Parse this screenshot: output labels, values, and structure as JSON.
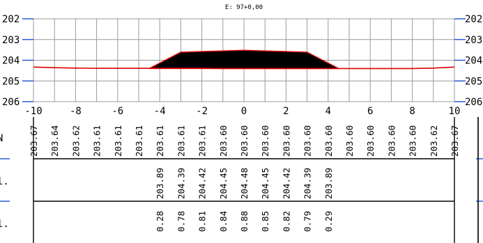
{
  "title": "E: 97+0,00",
  "y_axis_labels": [
    "206",
    "205",
    "204",
    "203",
    "202"
  ],
  "x_axis_labels": [
    "-10",
    "-8",
    "-6",
    "-4",
    "-2",
    "0",
    "2",
    "4",
    "6",
    "8",
    "10"
  ],
  "row_labels": [
    "N",
    "l.",
    "l."
  ],
  "chart_data": {
    "type": "line",
    "title": "E: 97+0,00",
    "xlim": [
      -10,
      10
    ],
    "ylim": [
      202,
      206
    ],
    "grid": true,
    "x_ticks": [
      -10,
      -8,
      -6,
      -4,
      -2,
      0,
      2,
      4,
      6,
      8,
      10
    ],
    "y_ticks": [
      202,
      203,
      204,
      205,
      206
    ],
    "series": [
      {
        "id": "terrain",
        "color": "#e00000",
        "x": [
          -10,
          -9,
          -8,
          -7,
          -6,
          -5,
          -4,
          -3,
          -2,
          -1,
          0,
          1,
          2,
          3,
          4,
          5,
          6,
          7,
          8,
          9,
          10
        ],
        "y": [
          203.67,
          203.64,
          203.62,
          203.61,
          203.61,
          203.61,
          203.61,
          203.61,
          203.61,
          203.6,
          203.6,
          203.6,
          203.6,
          203.6,
          203.6,
          203.6,
          203.6,
          203.6,
          203.6,
          203.62,
          203.67
        ]
      },
      {
        "id": "fill",
        "color": "#000000",
        "x": [
          -4.5,
          -3,
          -2,
          -1,
          0,
          1,
          2,
          3,
          4.5
        ],
        "y": [
          203.6,
          204.39,
          204.42,
          204.45,
          204.48,
          204.45,
          204.42,
          204.39,
          203.6
        ]
      }
    ],
    "table": {
      "x": [
        -10,
        -9,
        -8,
        -7,
        -6,
        -5,
        -4,
        -3,
        -2,
        -1,
        0,
        1,
        2,
        3,
        4,
        5,
        6,
        7,
        8,
        9,
        10
      ],
      "row1": [
        "203.67",
        "203.64",
        "203.62",
        "203.61",
        "203.61",
        "203.61",
        "203.61",
        "203.61",
        "203.61",
        "203.60",
        "203.60",
        "203.60",
        "203.60",
        "203.60",
        "203.60",
        "203.60",
        "203.60",
        "203.60",
        "203.60",
        "203.62",
        "203.67"
      ],
      "row2": [
        "",
        "",
        "",
        "",
        "",
        "",
        "203.89",
        "204.39",
        "204.42",
        "204.45",
        "204.48",
        "204.45",
        "204.42",
        "204.39",
        "203.89",
        "",
        "",
        "",
        "",
        "",
        ""
      ],
      "row3": [
        "",
        "",
        "",
        "",
        "",
        "",
        "0.28",
        "0.78",
        "0.81",
        "0.84",
        "0.88",
        "0.85",
        "0.82",
        "0.79",
        "0.29",
        "",
        "",
        "",
        "",
        "",
        ""
      ]
    }
  }
}
